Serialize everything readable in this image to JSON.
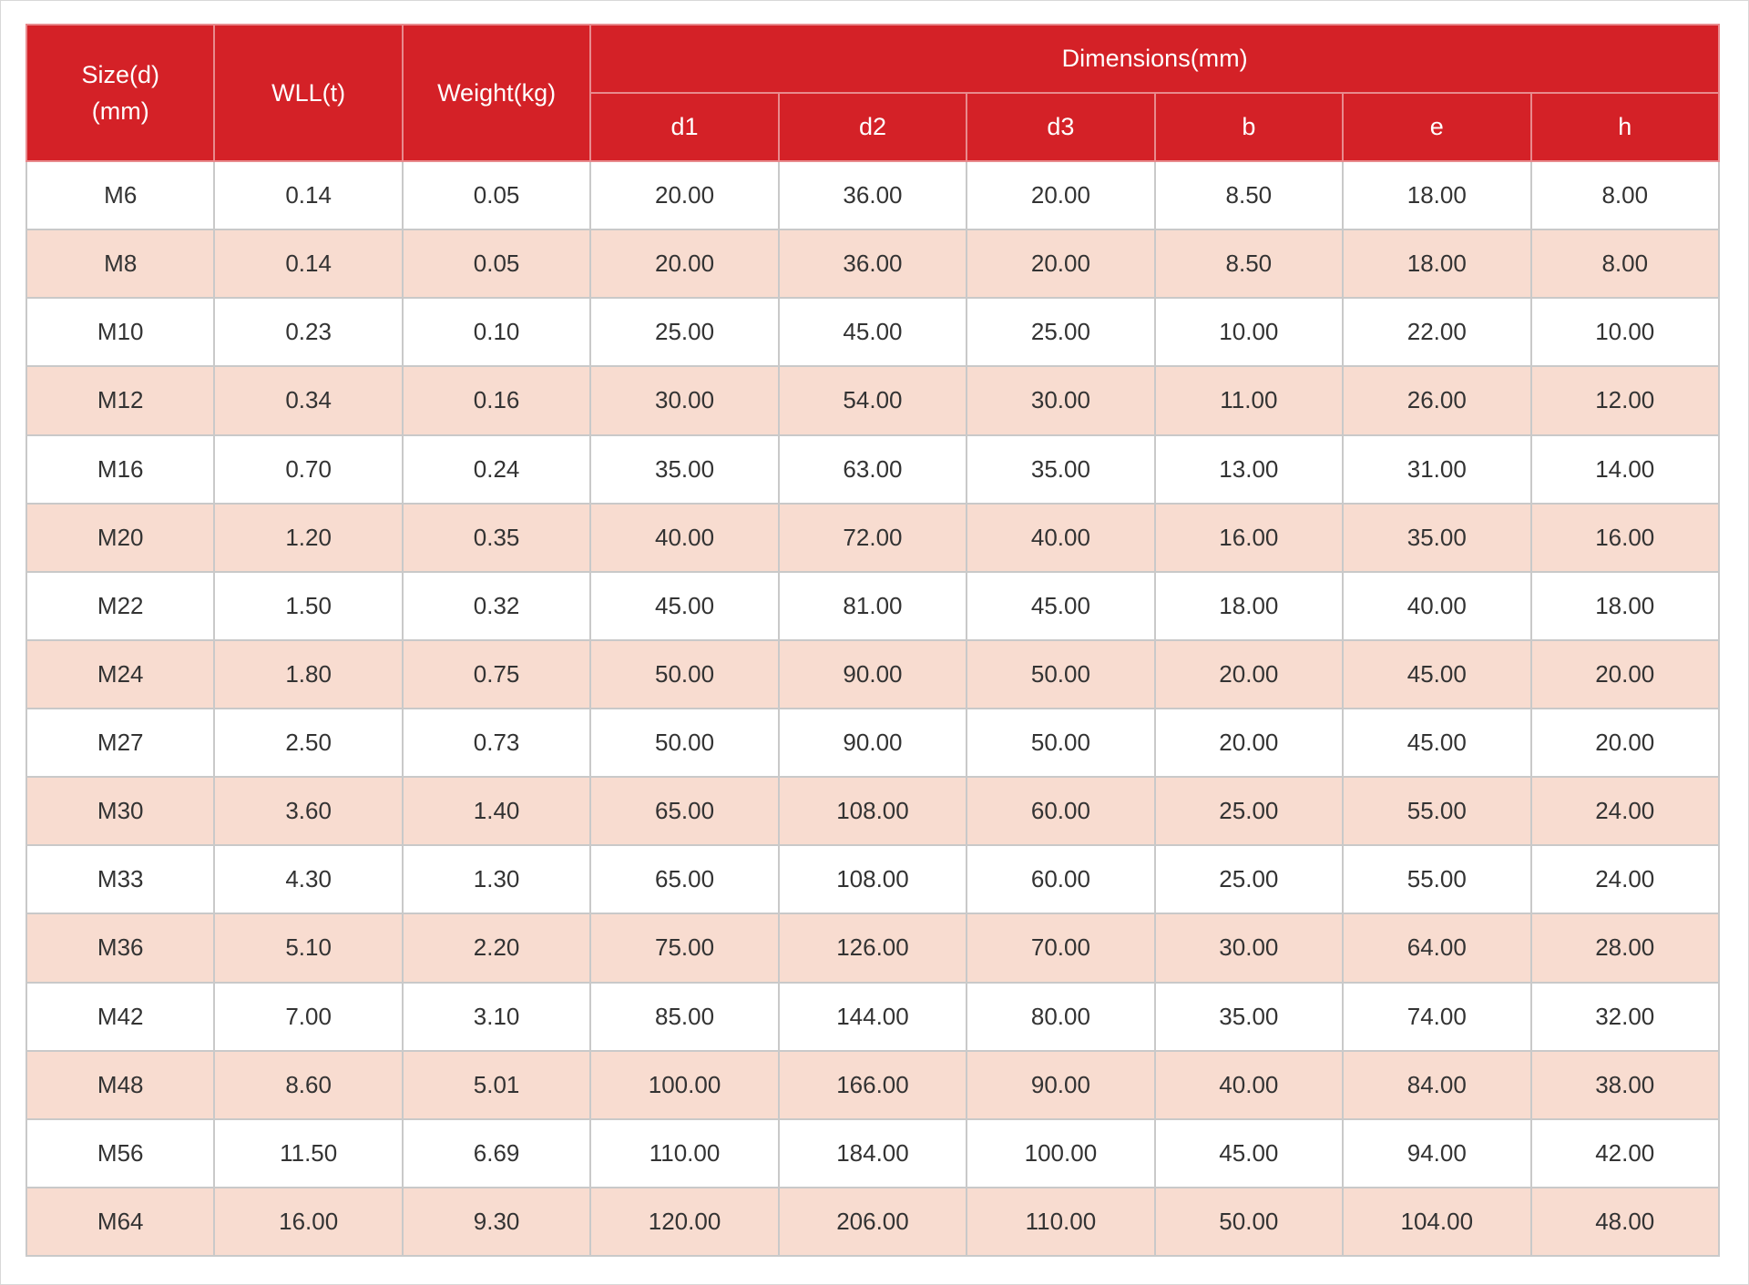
{
  "colors": {
    "header_bg": "#d42127",
    "header_text": "#ffffff",
    "row_alt_bg": "#f8dcd0",
    "row_bg": "#ffffff",
    "border": "#c9c9c9"
  },
  "table": {
    "header": {
      "size_line1": "Size(d)",
      "size_line2": "(mm)",
      "wll": "WLL(t)",
      "weight": "Weight(kg)",
      "dimensions": "Dimensions(mm)",
      "dim_columns": [
        "d1",
        "d2",
        "d3",
        "b",
        "e",
        "h"
      ]
    },
    "rows": [
      [
        "M6",
        "0.14",
        "0.05",
        "20.00",
        "36.00",
        "20.00",
        "8.50",
        "18.00",
        "8.00"
      ],
      [
        "M8",
        "0.14",
        "0.05",
        "20.00",
        "36.00",
        "20.00",
        "8.50",
        "18.00",
        "8.00"
      ],
      [
        "M10",
        "0.23",
        "0.10",
        "25.00",
        "45.00",
        "25.00",
        "10.00",
        "22.00",
        "10.00"
      ],
      [
        "M12",
        "0.34",
        "0.16",
        "30.00",
        "54.00",
        "30.00",
        "11.00",
        "26.00",
        "12.00"
      ],
      [
        "M16",
        "0.70",
        "0.24",
        "35.00",
        "63.00",
        "35.00",
        "13.00",
        "31.00",
        "14.00"
      ],
      [
        "M20",
        "1.20",
        "0.35",
        "40.00",
        "72.00",
        "40.00",
        "16.00",
        "35.00",
        "16.00"
      ],
      [
        "M22",
        "1.50",
        "0.32",
        "45.00",
        "81.00",
        "45.00",
        "18.00",
        "40.00",
        "18.00"
      ],
      [
        "M24",
        "1.80",
        "0.75",
        "50.00",
        "90.00",
        "50.00",
        "20.00",
        "45.00",
        "20.00"
      ],
      [
        "M27",
        "2.50",
        "0.73",
        "50.00",
        "90.00",
        "50.00",
        "20.00",
        "45.00",
        "20.00"
      ],
      [
        "M30",
        "3.60",
        "1.40",
        "65.00",
        "108.00",
        "60.00",
        "25.00",
        "55.00",
        "24.00"
      ],
      [
        "M33",
        "4.30",
        "1.30",
        "65.00",
        "108.00",
        "60.00",
        "25.00",
        "55.00",
        "24.00"
      ],
      [
        "M36",
        "5.10",
        "2.20",
        "75.00",
        "126.00",
        "70.00",
        "30.00",
        "64.00",
        "28.00"
      ],
      [
        "M42",
        "7.00",
        "3.10",
        "85.00",
        "144.00",
        "80.00",
        "35.00",
        "74.00",
        "32.00"
      ],
      [
        "M48",
        "8.60",
        "5.01",
        "100.00",
        "166.00",
        "90.00",
        "40.00",
        "84.00",
        "38.00"
      ],
      [
        "M56",
        "11.50",
        "6.69",
        "110.00",
        "184.00",
        "100.00",
        "45.00",
        "94.00",
        "42.00"
      ],
      [
        "M64",
        "16.00",
        "9.30",
        "120.00",
        "206.00",
        "110.00",
        "50.00",
        "104.00",
        "48.00"
      ]
    ]
  }
}
